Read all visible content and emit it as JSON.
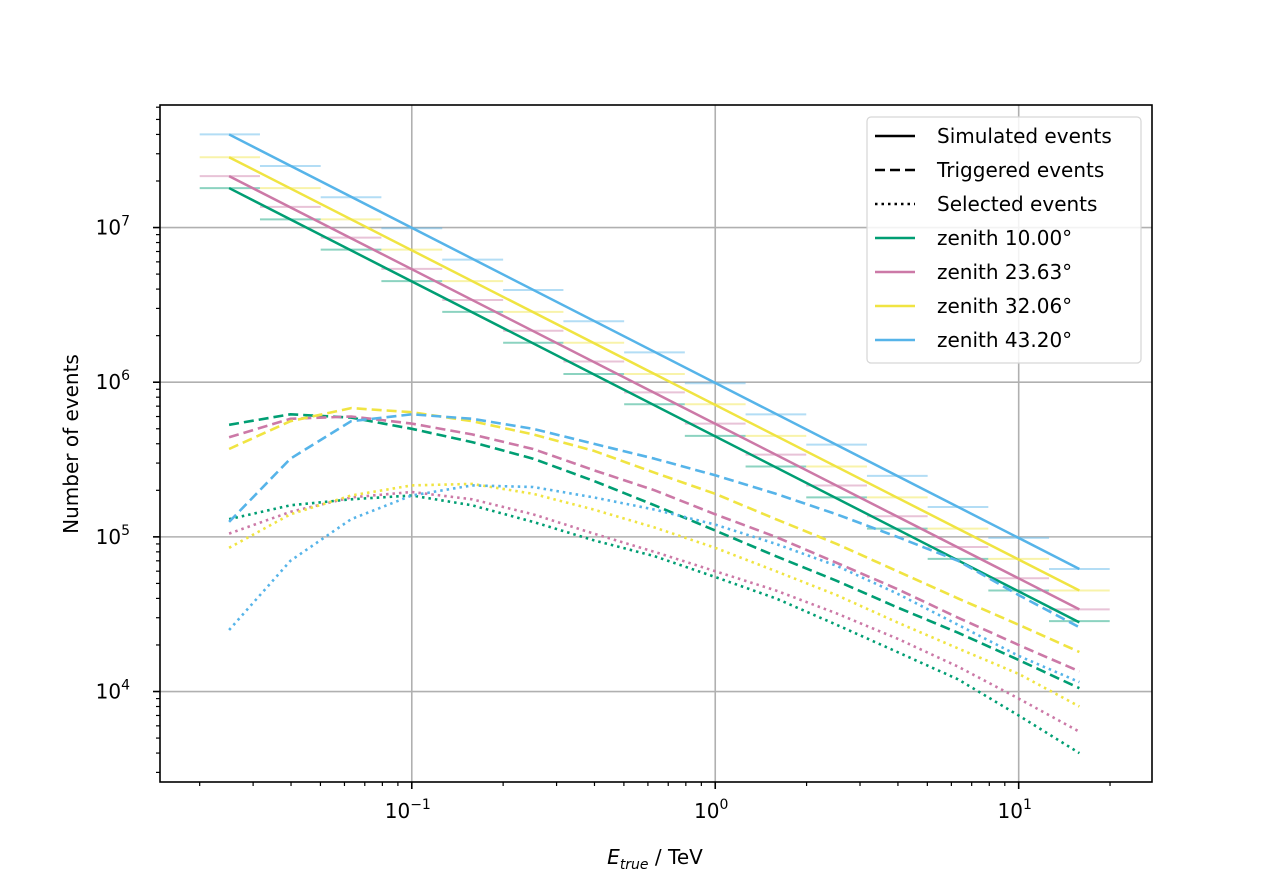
{
  "chart_data": {
    "type": "line",
    "title": "",
    "xlabel_main": "E",
    "xlabel_sub": "true",
    "xlabel_unit": "  / TeV",
    "ylabel": "Number of events",
    "xscale": "log",
    "yscale": "log",
    "xlim": [
      0.0148,
      27.5
    ],
    "ylim": [
      2600,
      62000000
    ],
    "grid": true,
    "legend_position": "top-right",
    "x_ticks": [
      {
        "value": 0.1,
        "base": "10",
        "exp": "−1"
      },
      {
        "value": 1,
        "base": "10",
        "exp": "0"
      },
      {
        "value": 10,
        "base": "10",
        "exp": "1"
      }
    ],
    "y_ticks": [
      {
        "value": 10000,
        "base": "10",
        "exp": "4"
      },
      {
        "value": 100000,
        "base": "10",
        "exp": "5"
      },
      {
        "value": 1000000,
        "base": "10",
        "exp": "6"
      },
      {
        "value": 10000000,
        "base": "10",
        "exp": "7"
      }
    ],
    "x": [
      0.025,
      0.0398,
      0.0631,
      0.1,
      0.158,
      0.251,
      0.398,
      0.631,
      1.0,
      1.585,
      2.512,
      3.981,
      6.31,
      10.0,
      15.85
    ],
    "bin_edges": [
      0.02,
      0.0316,
      0.0501,
      0.0794,
      0.126,
      0.2,
      0.316,
      0.501,
      0.794,
      1.259,
      1.995,
      3.162,
      5.012,
      7.943,
      12.59,
      19.95
    ],
    "legend": {
      "styles": [
        {
          "label": "Simulated events",
          "dash": "solid"
        },
        {
          "label": "Triggered events",
          "dash": "dashed"
        },
        {
          "label": "Selected events",
          "dash": "dotted"
        }
      ],
      "colors": [
        {
          "label": "zenith 10.00°",
          "color": "#009e73"
        },
        {
          "label": "zenith 23.63°",
          "color": "#cc79a7"
        },
        {
          "label": "zenith 32.06°",
          "color": "#f0e442"
        },
        {
          "label": "zenith 43.20°",
          "color": "#56b4e9"
        }
      ]
    },
    "series": [
      {
        "name": "zenith 10.00°",
        "color": "#009e73",
        "simulated": [
          18000000,
          4800000,
          28000,
          0
        ],
        "simulated_hist": [
          18000000,
          11300000,
          7200000,
          4500000,
          2850000,
          1800000,
          1130000,
          720000,
          450000,
          285000,
          180000,
          113000,
          72000,
          45000,
          28500
        ],
        "triggered": [
          530000,
          620000,
          590000,
          500000,
          410000,
          320000,
          230000,
          160000,
          110000,
          75000,
          52000,
          35000,
          24000,
          16000,
          10500
        ],
        "selected": [
          130000,
          160000,
          175000,
          185000,
          160000,
          125000,
          95000,
          75000,
          55000,
          40000,
          27000,
          18000,
          12000,
          7000,
          4000
        ]
      },
      {
        "name": "zenith 23.63°",
        "color": "#cc79a7",
        "simulated": [
          21500000,
          5500000,
          34000,
          0
        ],
        "simulated_hist": [
          21500000,
          13600000,
          8600000,
          5400000,
          3400000,
          2150000,
          1360000,
          860000,
          540000,
          340000,
          215000,
          136000,
          86000,
          54000,
          34000
        ],
        "triggered": [
          440000,
          580000,
          600000,
          540000,
          460000,
          370000,
          270000,
          200000,
          140000,
          100000,
          68000,
          46000,
          30000,
          20000,
          13500
        ],
        "selected": [
          105000,
          145000,
          180000,
          195000,
          175000,
          140000,
          105000,
          80000,
          60000,
          45000,
          32000,
          22000,
          14500,
          9000,
          5500
        ]
      },
      {
        "name": "zenith 32.06°",
        "color": "#f0e442",
        "simulated": [
          28500000,
          7200000,
          45000,
          0
        ],
        "simulated_hist": [
          28500000,
          18000000,
          11300000,
          7200000,
          4500000,
          2850000,
          1800000,
          1130000,
          720000,
          450000,
          285000,
          180000,
          113000,
          72000,
          45000
        ],
        "triggered": [
          370000,
          560000,
          680000,
          640000,
          560000,
          460000,
          360000,
          260000,
          190000,
          130000,
          90000,
          60000,
          40000,
          27000,
          18000
        ],
        "selected": [
          85000,
          140000,
          185000,
          215000,
          220000,
          190000,
          150000,
          115000,
          85000,
          60000,
          42000,
          28000,
          19000,
          13000,
          8000
        ]
      },
      {
        "name": "zenith 43.20°",
        "color": "#56b4e9",
        "simulated": [
          40000000,
          10000000,
          62000,
          0
        ],
        "simulated_hist": [
          40000000,
          25000000,
          15700000,
          9900000,
          6200000,
          3950000,
          2480000,
          1560000,
          985000,
          620000,
          395000,
          248000,
          156000,
          98500,
          62000
        ],
        "triggered": [
          125000,
          320000,
          560000,
          620000,
          580000,
          500000,
          400000,
          320000,
          250000,
          190000,
          140000,
          100000,
          70000,
          42000,
          26000
        ],
        "selected": [
          25000,
          70000,
          130000,
          185000,
          215000,
          210000,
          180000,
          150000,
          120000,
          90000,
          65000,
          43000,
          27000,
          17000,
          11500
        ]
      }
    ]
  }
}
